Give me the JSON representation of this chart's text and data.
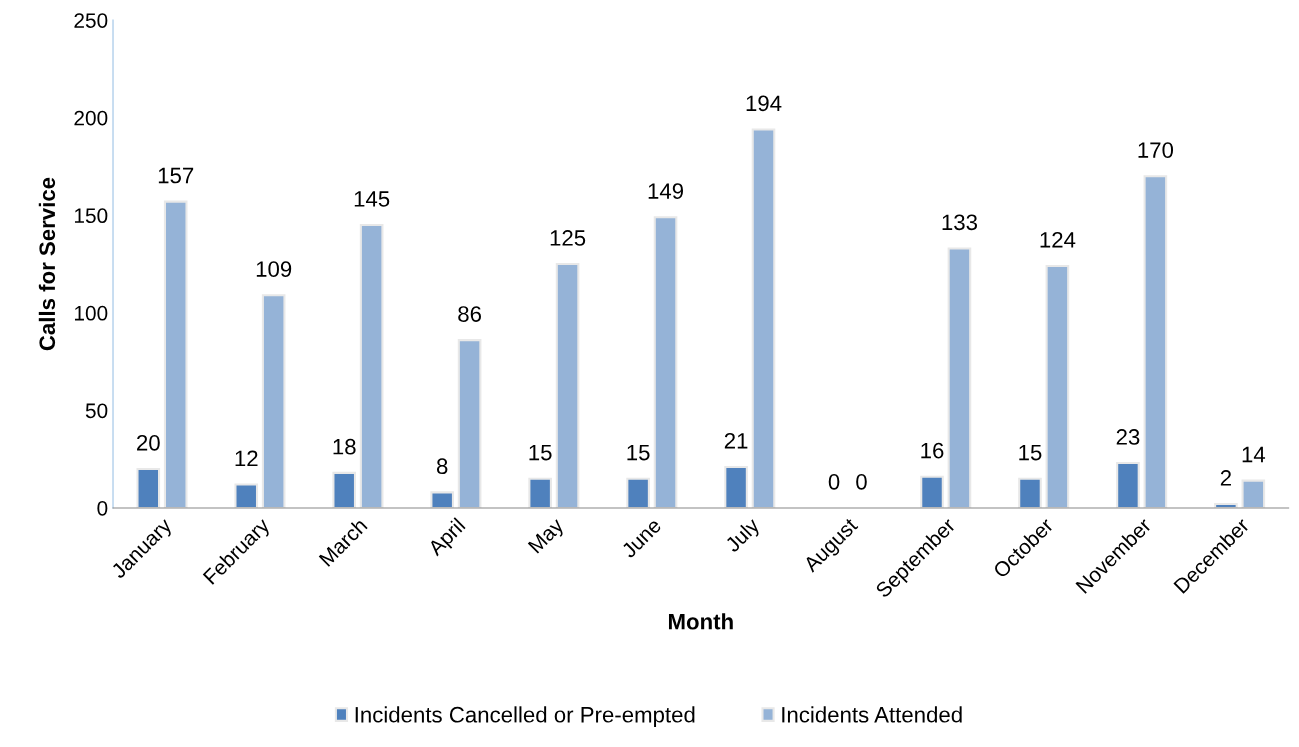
{
  "chart_data": {
    "type": "bar",
    "xlabel": "Month",
    "ylabel": "Calls for Service",
    "categories": [
      "January",
      "February",
      "March",
      "April",
      "May",
      "June",
      "July",
      "August",
      "September",
      "October",
      "November",
      "December"
    ],
    "series": [
      {
        "name": "Incidents Cancelled or Pre-empted",
        "color": "#4f81bd",
        "values": [
          20,
          12,
          18,
          8,
          15,
          15,
          21,
          0,
          16,
          15,
          23,
          2
        ]
      },
      {
        "name": "Incidents Attended",
        "color": "#95b3d7",
        "values": [
          157,
          109,
          145,
          86,
          125,
          149,
          194,
          0,
          133,
          124,
          170,
          14
        ]
      }
    ],
    "ylim": [
      0,
      250
    ],
    "yticks": [
      0,
      50,
      100,
      150,
      200,
      250
    ],
    "grid": false,
    "legend": "bottom",
    "data_labels": true
  }
}
